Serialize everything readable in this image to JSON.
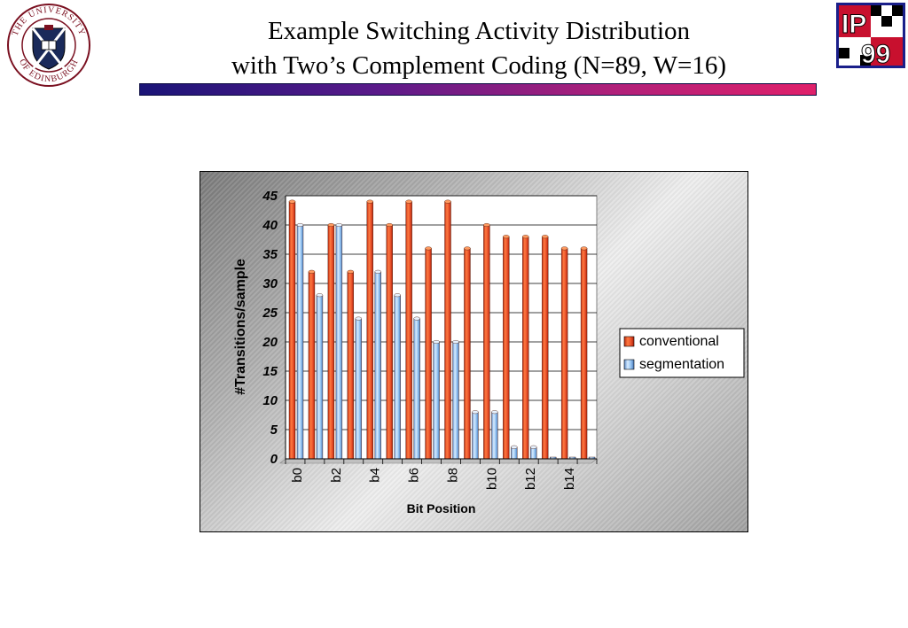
{
  "header": {
    "title_line1": "Example Switching Activity Distribution",
    "title_line2": "with Two’s Complement Coding (N=89, W=16)"
  },
  "logos": {
    "left_logo_text_top": "THE UNIVERSITY",
    "left_logo_text_bottom": "OF EDINBURGH",
    "right_logo_text_top": "IP",
    "right_logo_text_bottom": "99"
  },
  "colors": {
    "conventional": "#e8502a",
    "segmentation": "#8fc0f0",
    "title_bar_start": "#1a1477",
    "title_bar_end": "#e0206a"
  },
  "chart_data": {
    "type": "bar",
    "categories": [
      "b0",
      "b1",
      "b2",
      "b3",
      "b4",
      "b5",
      "b6",
      "b7",
      "b8",
      "b9",
      "b10",
      "b11",
      "b12",
      "b13",
      "b14",
      "b15"
    ],
    "tick_labels": [
      "b0",
      "b2",
      "b4",
      "b6",
      "b8",
      "b10",
      "b12",
      "b14"
    ],
    "series": [
      {
        "name": "conventional",
        "values": [
          44,
          32,
          40,
          32,
          44,
          40,
          44,
          36,
          44,
          36,
          40,
          38,
          38,
          38,
          36,
          36
        ]
      },
      {
        "name": "segmentation",
        "values": [
          40,
          28,
          40,
          24,
          32,
          28,
          24,
          20,
          20,
          8,
          8,
          2,
          2,
          0,
          0,
          0
        ]
      }
    ],
    "xlabel": "Bit Position",
    "ylabel": "#Transitions/sample",
    "ylim": [
      0,
      45
    ],
    "yticks": [
      0,
      5,
      10,
      15,
      20,
      25,
      30,
      35,
      40,
      45
    ],
    "grid": true,
    "legend": "right",
    "style": "3d-cylinder"
  }
}
